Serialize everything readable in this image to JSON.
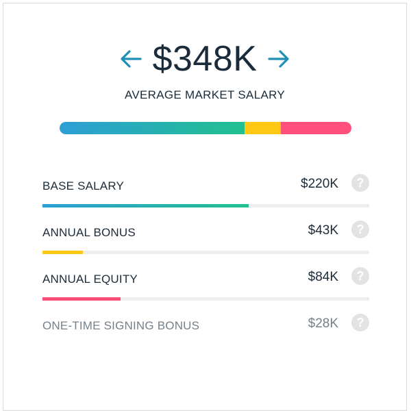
{
  "total": "$348K",
  "subtitle": "AVERAGE MARKET SALARY",
  "nav": {
    "prev_icon": "arrow-left-icon",
    "next_icon": "arrow-right-icon"
  },
  "colors": {
    "text": "#1c2b39",
    "muted_text": "#75808a",
    "arrow": "#1f8fb5",
    "base_gradient_start": "#2d9ed6",
    "base_gradient_end": "#21c08e",
    "bonus": "#ffc814",
    "equity": "#ff4f7b",
    "track": "#eeeeee"
  },
  "stack": [
    {
      "name": "base",
      "value": 220
    },
    {
      "name": "bonus",
      "value": 43
    },
    {
      "name": "equity",
      "value": 84
    }
  ],
  "rows": [
    {
      "label": "BASE SALARY",
      "value": "$220K",
      "fill_fraction": 0.63,
      "color": "base",
      "help_icon": "question-mark-icon"
    },
    {
      "label": "ANNUAL BONUS",
      "value": "$43K",
      "fill_fraction": 0.124,
      "color": "bonus",
      "help_icon": "question-mark-icon"
    },
    {
      "label": "ANNUAL EQUITY",
      "value": "$84K",
      "fill_fraction": 0.24,
      "color": "equity",
      "help_icon": "question-mark-icon"
    },
    {
      "label": "ONE-TIME SIGNING BONUS",
      "value": "$28K",
      "fill_fraction": 0,
      "color": "none",
      "help_icon": "question-mark-icon"
    }
  ]
}
